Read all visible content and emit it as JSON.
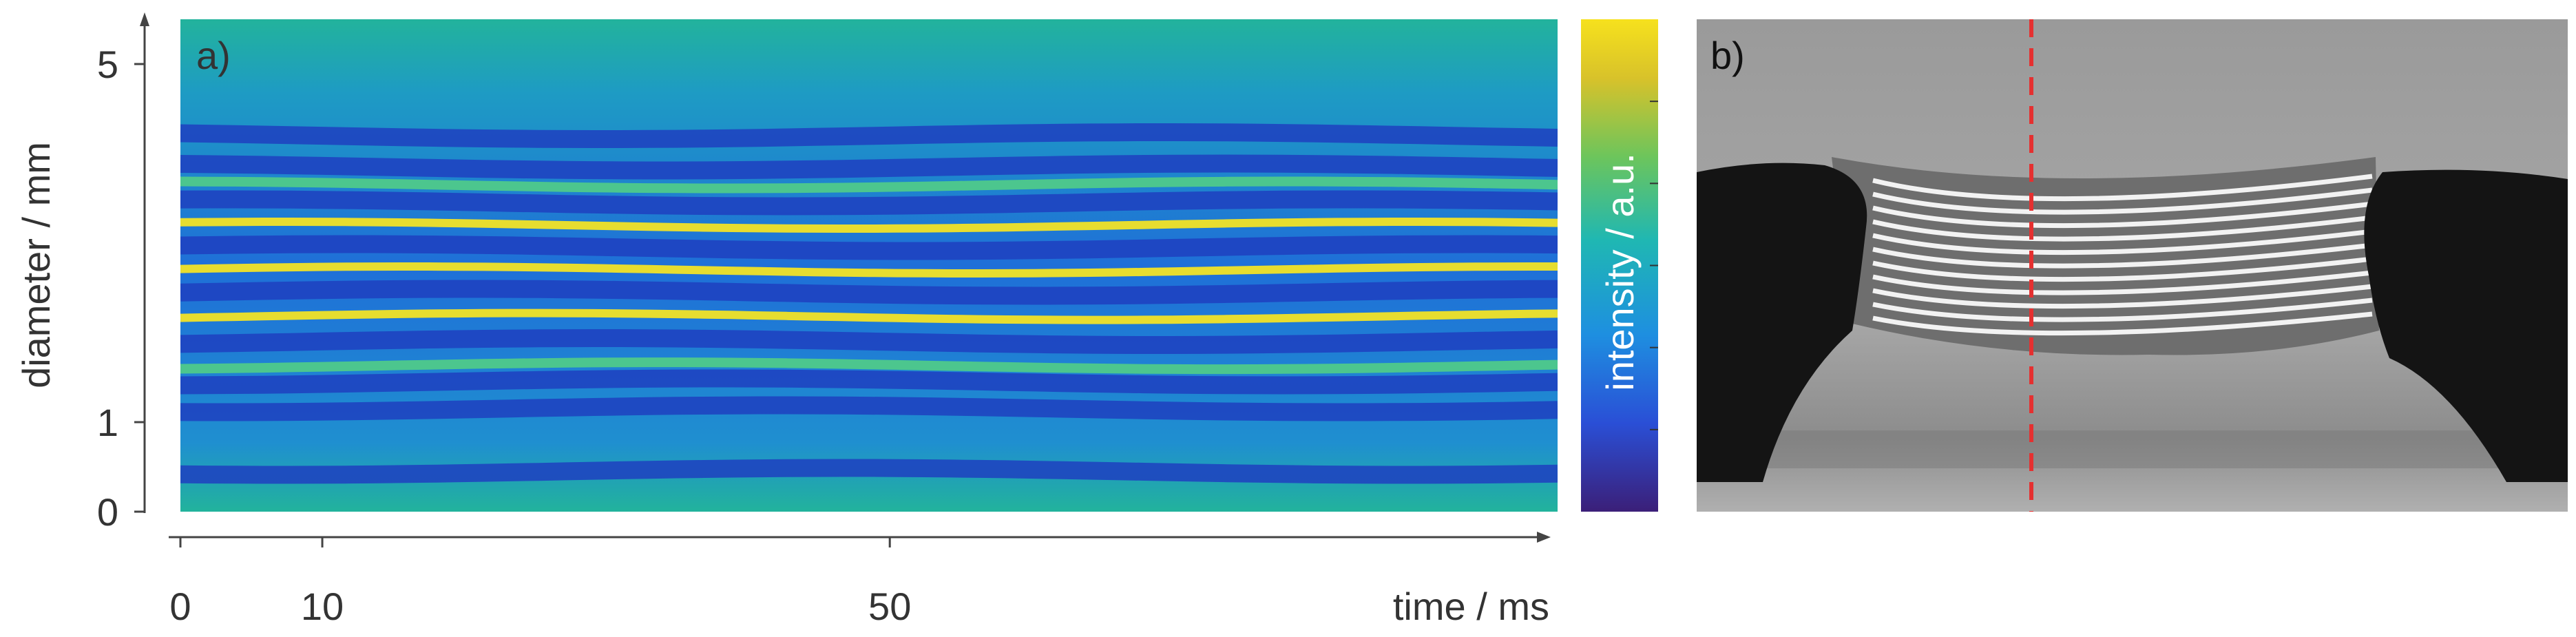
{
  "panel_a": {
    "label": "a)",
    "chart_data": {
      "type": "heatmap",
      "xlabel": "time /  ms",
      "ylabel": "diameter / mm",
      "x_ticks": [
        0,
        10,
        50
      ],
      "y_ticks": [
        0,
        1,
        5
      ],
      "xlim": [
        0,
        96
      ],
      "ylim": [
        0,
        5.5
      ],
      "description_bands": [
        {
          "y": 0.45,
          "kind": "dark"
        },
        {
          "y": 1.15,
          "kind": "dark"
        },
        {
          "y": 1.45,
          "kind": "dark"
        },
        {
          "y": 1.63,
          "kind": "green"
        },
        {
          "y": 1.9,
          "kind": "dark"
        },
        {
          "y": 2.18,
          "kind": "yellow"
        },
        {
          "y": 2.45,
          "kind": "dark"
        },
        {
          "y": 2.7,
          "kind": "yellow"
        },
        {
          "y": 2.95,
          "kind": "dark"
        },
        {
          "y": 3.2,
          "kind": "yellow"
        },
        {
          "y": 3.45,
          "kind": "dark"
        },
        {
          "y": 3.65,
          "kind": "green"
        },
        {
          "y": 3.85,
          "kind": "dark"
        },
        {
          "y": 4.2,
          "kind": "dark"
        }
      ]
    }
  },
  "colorbar": {
    "label": "intensity / a.u.",
    "colormap": [
      "#3b1f78",
      "#2a4fd6",
      "#1e8fe0",
      "#1fb7b3",
      "#6cc55c",
      "#d8c22a",
      "#f6e11d"
    ]
  },
  "panel_b": {
    "label": "b)",
    "description": "",
    "marker_color": "#e53030"
  },
  "colors": {
    "axis": "#444444",
    "dark_band": "#1f3fbf",
    "bright_band": "#f2e326",
    "background": "#1fb0a0"
  }
}
